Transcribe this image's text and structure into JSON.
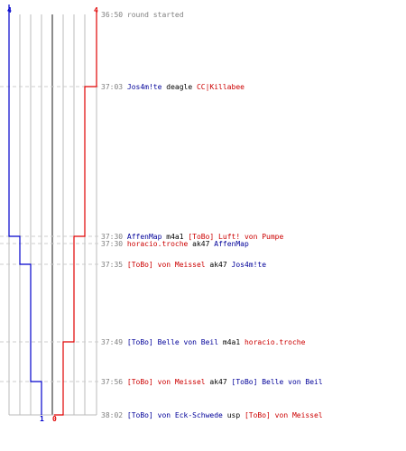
{
  "start_counts": {
    "blue": "4",
    "red": "4"
  },
  "end_counts": {
    "blue": "1",
    "red": "0"
  },
  "events": [
    {
      "time": "36:50",
      "parts": [
        {
          "text": "round started",
          "color": "gray"
        }
      ]
    },
    {
      "time": "37:03",
      "parts": [
        {
          "text": "Jos4m!te",
          "color": "blue"
        },
        {
          "text": " deagle ",
          "color": "black"
        },
        {
          "text": "CC|Killabee",
          "color": "red"
        }
      ]
    },
    {
      "time": "37:30",
      "parts": [
        {
          "text": "AffenMap",
          "color": "blue"
        },
        {
          "text": " m4a1 ",
          "color": "black"
        },
        {
          "text": "[ToBo] Luft! von Pumpe",
          "color": "red"
        }
      ]
    },
    {
      "time": "37:30",
      "parts": [
        {
          "text": "horacio.troche",
          "color": "red"
        },
        {
          "text": " ak47 ",
          "color": "black"
        },
        {
          "text": "AffenMap",
          "color": "blue"
        }
      ]
    },
    {
      "time": "37:35",
      "parts": [
        {
          "text": "[ToBo] von Meissel",
          "color": "red"
        },
        {
          "text": " ak47 ",
          "color": "black"
        },
        {
          "text": "Jos4m!te",
          "color": "blue"
        }
      ]
    },
    {
      "time": "37:49",
      "parts": [
        {
          "text": "[ToBo] Belle von Beil",
          "color": "blue"
        },
        {
          "text": " m4a1 ",
          "color": "black"
        },
        {
          "text": "horacio.troche",
          "color": "red"
        }
      ]
    },
    {
      "time": "37:56",
      "parts": [
        {
          "text": "[ToBo] von Meissel",
          "color": "red"
        },
        {
          "text": " ak47 ",
          "color": "black"
        },
        {
          "text": "[ToBo] Belle von Beil",
          "color": "blue"
        }
      ]
    },
    {
      "time": "38:02",
      "parts": [
        {
          "text": "[ToBo] von Eck-Schwede",
          "color": "blue"
        },
        {
          "text": " usp ",
          "color": "black"
        },
        {
          "text": "[ToBo] von Meissel",
          "color": "red"
        }
      ]
    }
  ],
  "colors": {
    "blue": "#0000cc",
    "red": "#e00000",
    "grid": "#bbbbbb",
    "dash": "#cccccc",
    "center": "#666666"
  }
}
